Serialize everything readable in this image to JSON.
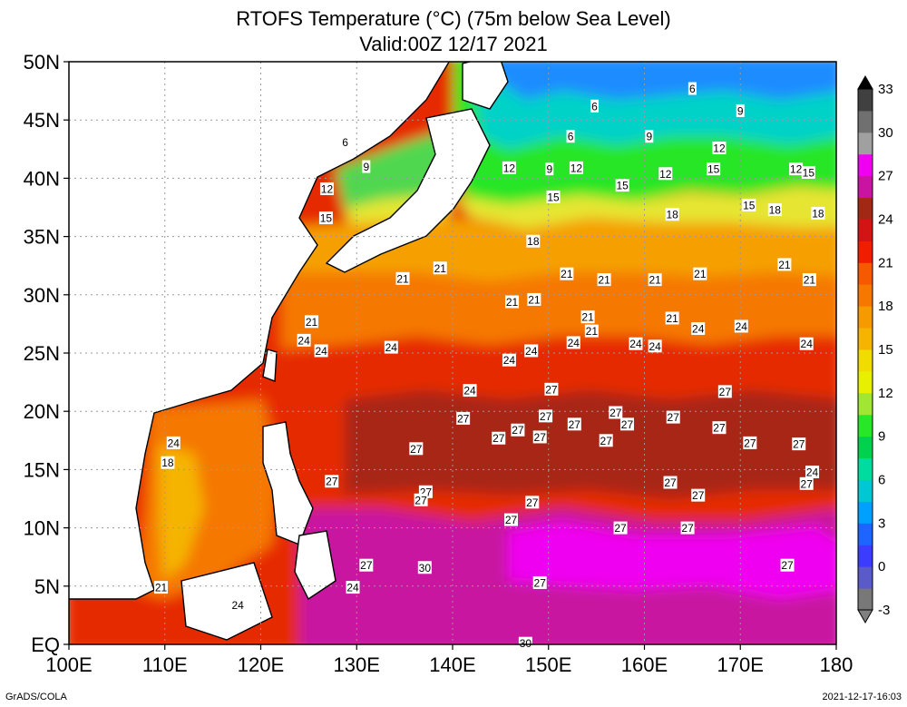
{
  "title": "RTOFS Temperature (°C) (75m below Sea Level)",
  "subtitle": "Valid:00Z 12/17 2021",
  "footer_left": "GrADS/COLA",
  "footer_right": "2021-12-17-16:03",
  "axes": {
    "lon_min": 100,
    "lon_max": 180,
    "lat_min": 0,
    "lat_max": 50,
    "lon_ticks": [
      {
        "value": 100,
        "label": "100E"
      },
      {
        "value": 110,
        "label": "110E"
      },
      {
        "value": 120,
        "label": "120E"
      },
      {
        "value": 130,
        "label": "130E"
      },
      {
        "value": 140,
        "label": "140E"
      },
      {
        "value": 150,
        "label": "150E"
      },
      {
        "value": 160,
        "label": "160E"
      },
      {
        "value": 170,
        "label": "170E"
      },
      {
        "value": 180,
        "label": "180"
      }
    ],
    "lat_ticks": [
      {
        "value": 0,
        "label": "EQ"
      },
      {
        "value": 5,
        "label": "5N"
      },
      {
        "value": 10,
        "label": "10N"
      },
      {
        "value": 15,
        "label": "15N"
      },
      {
        "value": 20,
        "label": "20N"
      },
      {
        "value": 25,
        "label": "25N"
      },
      {
        "value": 30,
        "label": "30N"
      },
      {
        "value": 35,
        "label": "35N"
      },
      {
        "value": 40,
        "label": "40N"
      },
      {
        "value": 45,
        "label": "45N"
      },
      {
        "value": 50,
        "label": "50N"
      }
    ]
  },
  "colorbar": {
    "min": -3,
    "max": 33,
    "colors": [
      "#787878",
      "#5a5ac8",
      "#3c3cff",
      "#1e64ff",
      "#00a0ff",
      "#00c8d2",
      "#00dca0",
      "#00d250",
      "#28e628",
      "#a0e632",
      "#e6f000",
      "#f0dc00",
      "#f5b400",
      "#f59b00",
      "#f57800",
      "#f55a00",
      "#f01e00",
      "#d21414",
      "#a02814",
      "#c814a0",
      "#f000f0",
      "#a0a0a0",
      "#707070",
      "#404040"
    ],
    "tick_values": [
      -3,
      0,
      3,
      6,
      9,
      12,
      15,
      18,
      21,
      24,
      27,
      30,
      33
    ],
    "tick_labels": [
      "-3",
      "0",
      "3",
      "6",
      "9",
      "12",
      "15",
      "18",
      "21",
      "24",
      "27",
      "30",
      "33"
    ]
  },
  "contour_labels": [
    {
      "lon": 165.0,
      "lat": 47.7,
      "text": "6"
    },
    {
      "lon": 170.0,
      "lat": 45.8,
      "text": "9"
    },
    {
      "lon": 154.8,
      "lat": 46.2,
      "text": "6"
    },
    {
      "lon": 128.8,
      "lat": 43.1,
      "text": "6"
    },
    {
      "lon": 152.3,
      "lat": 43.6,
      "text": "6"
    },
    {
      "lon": 160.5,
      "lat": 43.6,
      "text": "9"
    },
    {
      "lon": 167.8,
      "lat": 42.6,
      "text": "12"
    },
    {
      "lon": 145.9,
      "lat": 40.9,
      "text": "12"
    },
    {
      "lon": 150.1,
      "lat": 40.8,
      "text": "9"
    },
    {
      "lon": 152.9,
      "lat": 40.9,
      "text": "12"
    },
    {
      "lon": 131.0,
      "lat": 41.0,
      "text": "9"
    },
    {
      "lon": 162.2,
      "lat": 40.4,
      "text": "12"
    },
    {
      "lon": 167.2,
      "lat": 40.8,
      "text": "15"
    },
    {
      "lon": 175.8,
      "lat": 40.8,
      "text": "12"
    },
    {
      "lon": 177.1,
      "lat": 40.5,
      "text": "15"
    },
    {
      "lon": 126.9,
      "lat": 39.1,
      "text": "12"
    },
    {
      "lon": 157.7,
      "lat": 39.4,
      "text": "15"
    },
    {
      "lon": 150.5,
      "lat": 38.4,
      "text": "15"
    },
    {
      "lon": 170.9,
      "lat": 37.7,
      "text": "15"
    },
    {
      "lon": 173.6,
      "lat": 37.3,
      "text": "18"
    },
    {
      "lon": 162.9,
      "lat": 36.9,
      "text": "18"
    },
    {
      "lon": 178.1,
      "lat": 37.0,
      "text": "18"
    },
    {
      "lon": 126.8,
      "lat": 36.6,
      "text": "15"
    },
    {
      "lon": 148.4,
      "lat": 34.6,
      "text": "18"
    },
    {
      "lon": 174.6,
      "lat": 32.6,
      "text": "21"
    },
    {
      "lon": 138.7,
      "lat": 32.3,
      "text": "21"
    },
    {
      "lon": 151.9,
      "lat": 31.8,
      "text": "21"
    },
    {
      "lon": 161.1,
      "lat": 31.3,
      "text": "21"
    },
    {
      "lon": 165.8,
      "lat": 31.8,
      "text": "21"
    },
    {
      "lon": 155.8,
      "lat": 31.3,
      "text": "21"
    },
    {
      "lon": 134.8,
      "lat": 31.4,
      "text": "21"
    },
    {
      "lon": 177.2,
      "lat": 31.3,
      "text": "21"
    },
    {
      "lon": 146.2,
      "lat": 29.4,
      "text": "21"
    },
    {
      "lon": 148.5,
      "lat": 29.6,
      "text": "21"
    },
    {
      "lon": 154.1,
      "lat": 28.1,
      "text": "21"
    },
    {
      "lon": 162.9,
      "lat": 28.0,
      "text": "21"
    },
    {
      "lon": 154.5,
      "lat": 26.9,
      "text": "21"
    },
    {
      "lon": 125.3,
      "lat": 27.7,
      "text": "21"
    },
    {
      "lon": 165.6,
      "lat": 27.1,
      "text": "24"
    },
    {
      "lon": 170.1,
      "lat": 27.3,
      "text": "24"
    },
    {
      "lon": 152.6,
      "lat": 25.9,
      "text": "24"
    },
    {
      "lon": 159.1,
      "lat": 25.8,
      "text": "24"
    },
    {
      "lon": 161.1,
      "lat": 25.6,
      "text": "24"
    },
    {
      "lon": 124.5,
      "lat": 26.1,
      "text": "24"
    },
    {
      "lon": 126.3,
      "lat": 25.2,
      "text": "24"
    },
    {
      "lon": 133.6,
      "lat": 25.5,
      "text": "24"
    },
    {
      "lon": 148.2,
      "lat": 25.2,
      "text": "24"
    },
    {
      "lon": 176.9,
      "lat": 25.8,
      "text": "24"
    },
    {
      "lon": 145.9,
      "lat": 24.4,
      "text": "24"
    },
    {
      "lon": 141.8,
      "lat": 21.8,
      "text": "24"
    },
    {
      "lon": 150.3,
      "lat": 21.9,
      "text": "27"
    },
    {
      "lon": 168.4,
      "lat": 21.7,
      "text": "27"
    },
    {
      "lon": 157.0,
      "lat": 19.9,
      "text": "27"
    },
    {
      "lon": 149.7,
      "lat": 19.6,
      "text": "27"
    },
    {
      "lon": 141.1,
      "lat": 19.4,
      "text": "27"
    },
    {
      "lon": 163.0,
      "lat": 19.5,
      "text": "27"
    },
    {
      "lon": 158.2,
      "lat": 18.9,
      "text": "27"
    },
    {
      "lon": 152.7,
      "lat": 18.9,
      "text": "27"
    },
    {
      "lon": 146.8,
      "lat": 18.4,
      "text": "27"
    },
    {
      "lon": 167.8,
      "lat": 18.6,
      "text": "27"
    },
    {
      "lon": 144.8,
      "lat": 17.7,
      "text": "27"
    },
    {
      "lon": 149.1,
      "lat": 17.8,
      "text": "27"
    },
    {
      "lon": 156.0,
      "lat": 17.5,
      "text": "27"
    },
    {
      "lon": 171.0,
      "lat": 17.3,
      "text": "27"
    },
    {
      "lon": 176.1,
      "lat": 17.2,
      "text": "27"
    },
    {
      "lon": 110.9,
      "lat": 17.3,
      "text": "24"
    },
    {
      "lon": 136.2,
      "lat": 16.8,
      "text": "27"
    },
    {
      "lon": 110.3,
      "lat": 15.6,
      "text": "18"
    },
    {
      "lon": 177.5,
      "lat": 14.8,
      "text": "24"
    },
    {
      "lon": 176.9,
      "lat": 13.8,
      "text": "27"
    },
    {
      "lon": 127.4,
      "lat": 14.0,
      "text": "27"
    },
    {
      "lon": 162.7,
      "lat": 13.9,
      "text": "27"
    },
    {
      "lon": 165.6,
      "lat": 12.8,
      "text": "27"
    },
    {
      "lon": 137.2,
      "lat": 13.1,
      "text": "27"
    },
    {
      "lon": 136.7,
      "lat": 12.4,
      "text": "27"
    },
    {
      "lon": 148.3,
      "lat": 12.2,
      "text": "27"
    },
    {
      "lon": 146.1,
      "lat": 10.7,
      "text": "27"
    },
    {
      "lon": 157.5,
      "lat": 10.0,
      "text": "27"
    },
    {
      "lon": 164.5,
      "lat": 10.0,
      "text": "27"
    },
    {
      "lon": 174.9,
      "lat": 6.8,
      "text": "27"
    },
    {
      "lon": 131.0,
      "lat": 6.8,
      "text": "27"
    },
    {
      "lon": 137.1,
      "lat": 6.6,
      "text": "30"
    },
    {
      "lon": 149.1,
      "lat": 5.3,
      "text": "27"
    },
    {
      "lon": 109.6,
      "lat": 4.9,
      "text": "21"
    },
    {
      "lon": 129.6,
      "lat": 4.9,
      "text": "24"
    },
    {
      "lon": 117.6,
      "lat": 3.4,
      "text": "24"
    },
    {
      "lon": 147.6,
      "lat": 0.1,
      "text": "30"
    }
  ]
}
